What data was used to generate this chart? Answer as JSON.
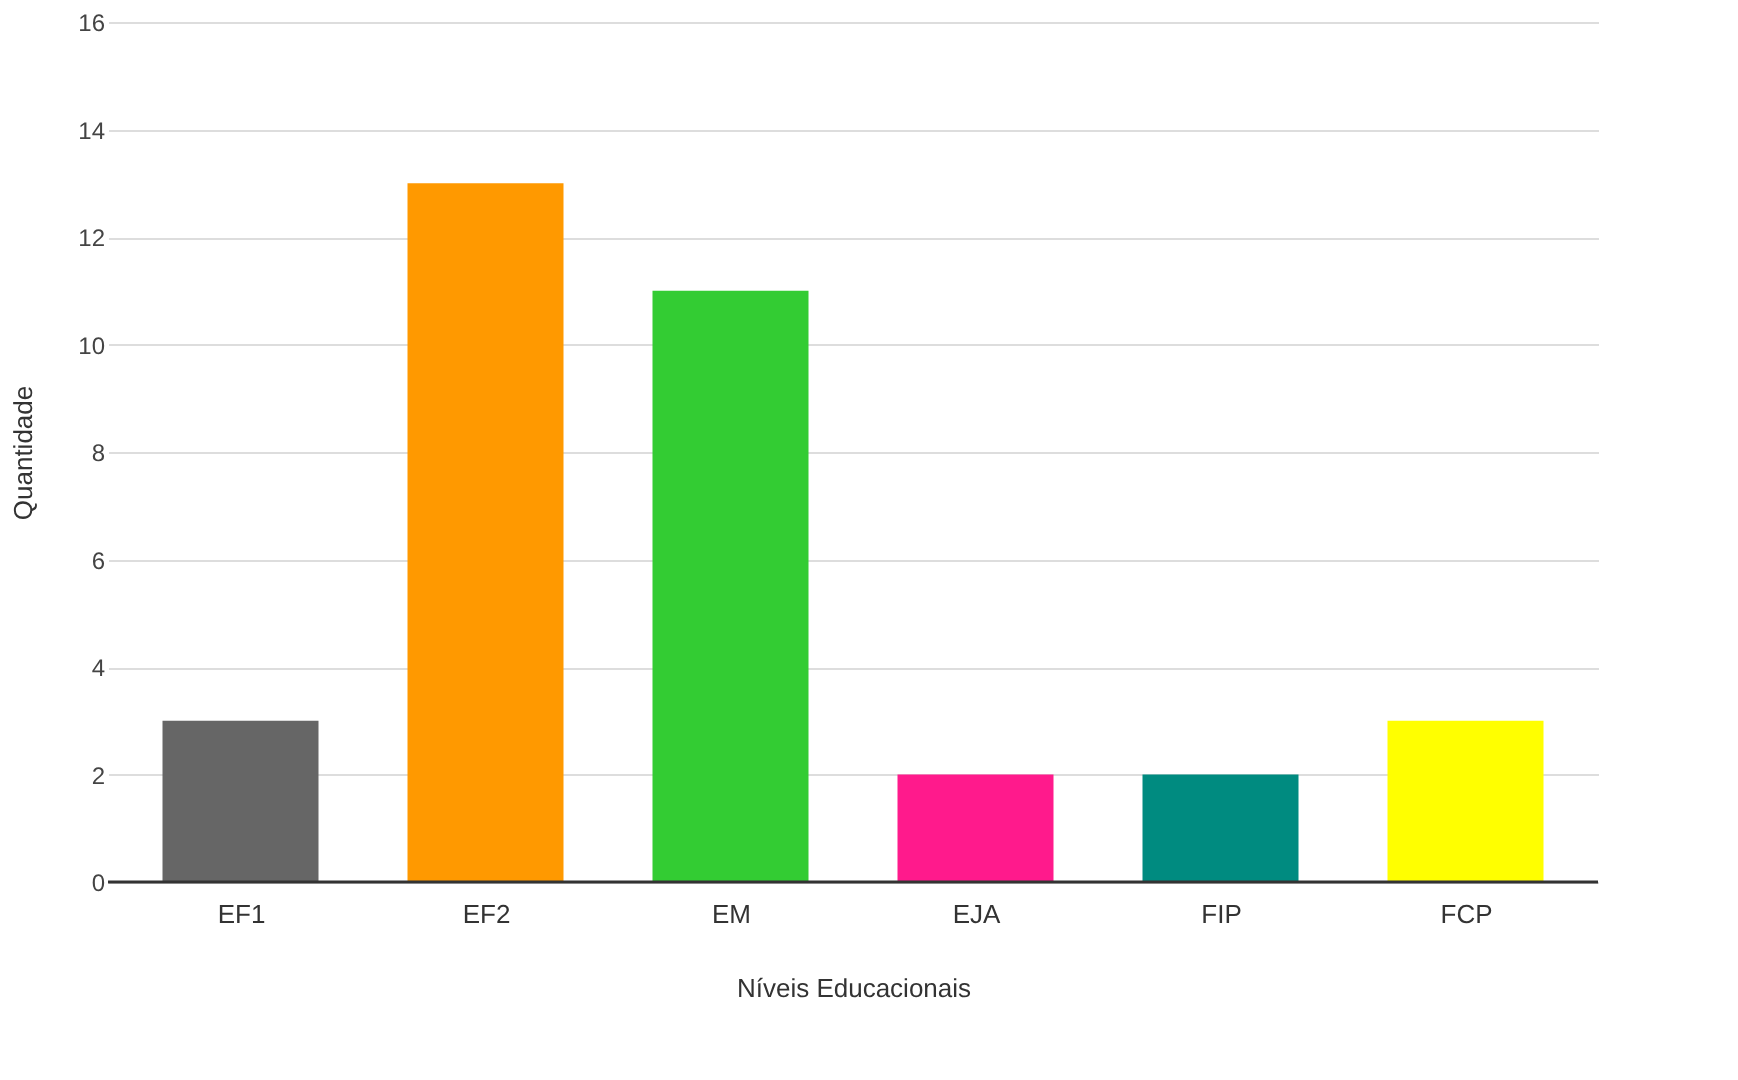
{
  "chart_data": {
    "type": "bar",
    "xlabel": "Níveis Educacionais",
    "ylabel": "Quantidade",
    "categories": [
      "EF1",
      "EF2",
      "EM",
      "EJA",
      "FIP",
      "FCP"
    ],
    "values": [
      3,
      13,
      11,
      2,
      2,
      3
    ],
    "colors": [
      "#666666",
      "#ff9900",
      "#33cc33",
      "#ff1a8c",
      "#008b80",
      "#ffff00"
    ],
    "ylim": [
      0,
      16
    ],
    "yticks": [
      0,
      2,
      4,
      6,
      8,
      10,
      12,
      14,
      16
    ],
    "grid": "y"
  }
}
